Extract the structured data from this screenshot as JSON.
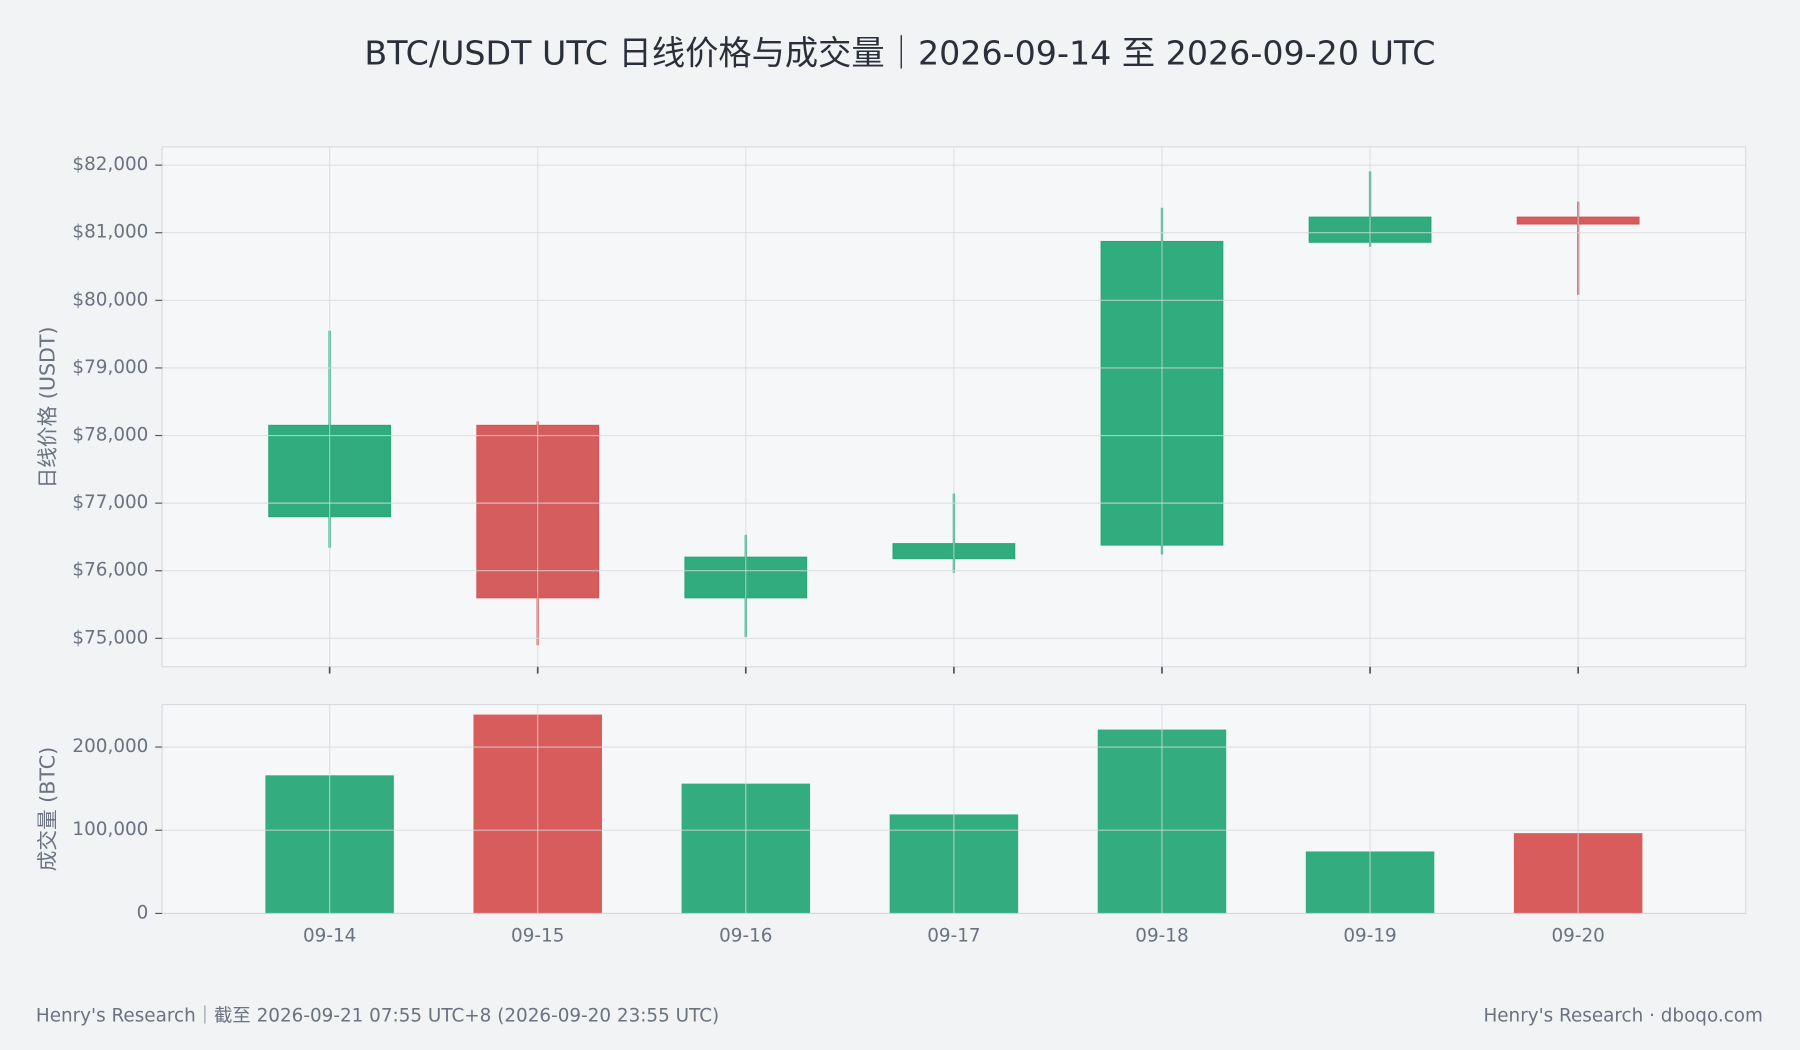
{
  "chart_data": [
    {
      "type": "candlestick",
      "title": "BTC/USDT UTC 日线价格与成交量｜2026-09-14 至 2026-09-20 UTC",
      "ylabel": "日线价格 (USDT)",
      "categories": [
        "09-14",
        "09-15",
        "09-16",
        "09-17",
        "09-18",
        "09-19",
        "09-20"
      ],
      "open": [
        76800,
        78150,
        75600,
        76180,
        76380,
        80860,
        81230
      ],
      "high": [
        79550,
        78210,
        76530,
        77140,
        81370,
        81910,
        81460
      ],
      "low": [
        76340,
        74900,
        75020,
        75970,
        76240,
        80790,
        80080
      ],
      "close": [
        78150,
        75600,
        76200,
        76400,
        80870,
        81230,
        81130
      ],
      "up_color": "#26a878",
      "down_color": "#d45454",
      "ylim": [
        74580,
        82270
      ],
      "yticks": [
        {
          "value": 75000,
          "label": "$75,000"
        },
        {
          "value": 76000,
          "label": "$76,000"
        },
        {
          "value": 77000,
          "label": "$77,000"
        },
        {
          "value": 78000,
          "label": "$78,000"
        },
        {
          "value": 79000,
          "label": "$79,000"
        },
        {
          "value": 80000,
          "label": "$80,000"
        },
        {
          "value": 81000,
          "label": "$81,000"
        },
        {
          "value": 82000,
          "label": "$82,000"
        }
      ],
      "grid": true
    },
    {
      "type": "bar",
      "ylabel": "成交量 (BTC)",
      "categories": [
        "09-14",
        "09-15",
        "09-16",
        "09-17",
        "09-18",
        "09-19",
        "09-20"
      ],
      "values": [
        166000,
        239000,
        156000,
        119000,
        221000,
        74500,
        96500
      ],
      "colors": [
        "#33ac80",
        "#d95c5c",
        "#33ac80",
        "#33ac80",
        "#33ac80",
        "#33ac80",
        "#d95c5c"
      ],
      "ylim": [
        0,
        251000
      ],
      "yticks": [
        0,
        {
          "value": 100000,
          "label": "100,000"
        },
        {
          "value": 200000,
          "label": "200,000"
        }
      ],
      "grid": true
    }
  ],
  "footer": {
    "left": "Henry's Research｜截至 2026-09-21 07:55 UTC+8 (2026-09-20 23:55 UTC)",
    "right": "Henry's Research · dboqo.com"
  }
}
